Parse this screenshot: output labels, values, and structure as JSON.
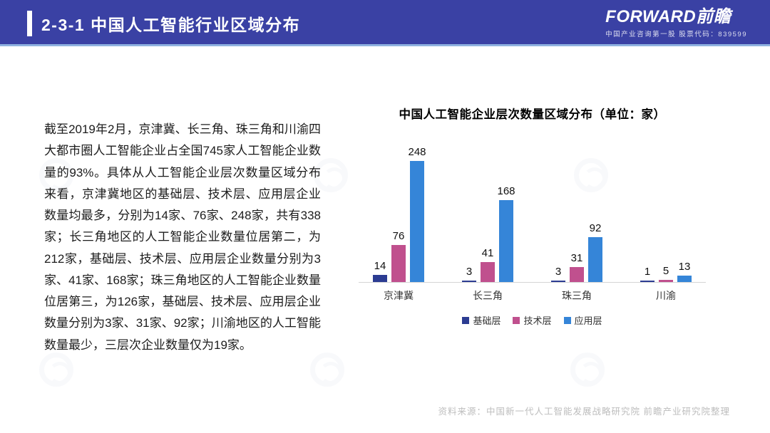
{
  "header": {
    "title": "2-3-1 中国人工智能行业区域分布",
    "logo": "FORWARD前瞻",
    "tagline": "中国产业咨询第一股 股票代码：839599"
  },
  "body": {
    "paragraph": "截至2019年2月，京津冀、长三角、珠三角和川渝四大都市圈人工智能企业占全国745家人工智能企业数量的93%。具体从人工智能企业层次数量区域分布来看，京津冀地区的基础层、技术层、应用层企业数量均最多，分别为14家、76家、248家，共有338家；长三角地区的人工智能企业数量位居第二，为212家，基础层、技术层、应用层企业数量分别为3家、41家、168家；珠三角地区的人工智能企业数量位居第三，为126家，基础层、技术层、应用层企业数量分别为3家、31家、92家；川渝地区的人工智能数量最少，三层次企业数量仅为19家。"
  },
  "chart_data": {
    "type": "bar",
    "title": "中国人工智能企业层次数量区域分布（单位：家）",
    "categories": [
      "京津冀",
      "长三角",
      "珠三角",
      "川渝"
    ],
    "series": [
      {
        "name": "基础层",
        "color": "#2c3c92",
        "values": [
          14,
          3,
          3,
          1
        ]
      },
      {
        "name": "技术层",
        "color": "#c0508e",
        "values": [
          76,
          41,
          31,
          5
        ]
      },
      {
        "name": "应用层",
        "color": "#3585d8",
        "values": [
          248,
          168,
          92,
          13
        ]
      }
    ],
    "ylim": [
      0,
      260
    ],
    "grid": false,
    "data_labels": true,
    "legend_position": "bottom"
  },
  "footer": {
    "source": "资料来源：中国新一代人工智能发展战略研究院 前瞻产业研究院整理"
  }
}
